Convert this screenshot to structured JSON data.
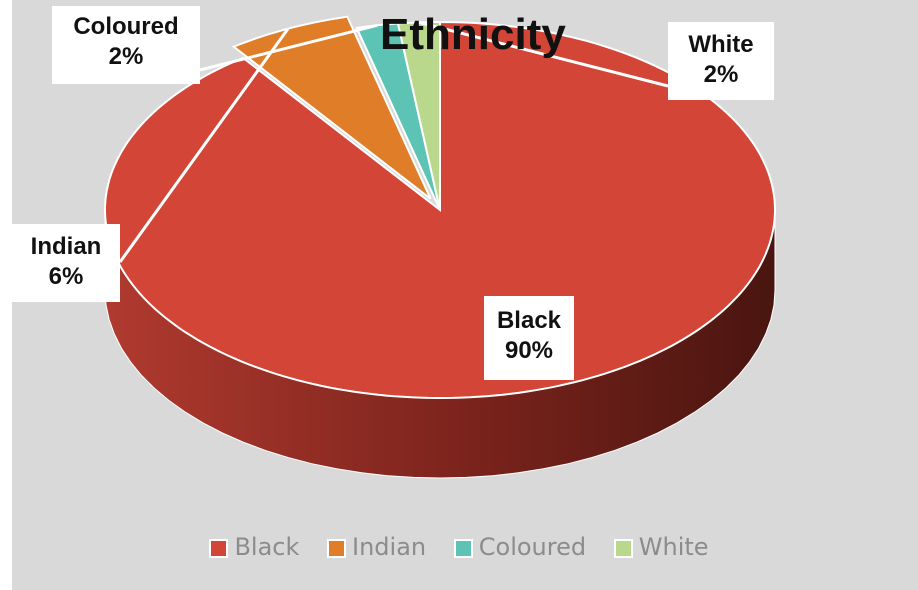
{
  "chart_data": {
    "type": "pie",
    "title": "Ethnicity",
    "slices": [
      {
        "label": "Black",
        "value": 90,
        "color": "#d24537",
        "data_label": [
          "Black",
          "90%"
        ]
      },
      {
        "label": "Indian",
        "value": 6,
        "color": "#e07d28",
        "data_label": [
          "Indian",
          "6%"
        ]
      },
      {
        "label": "Coloured",
        "value": 2,
        "color": "#5dc3b4",
        "data_label": [
          "Coloured",
          "2%"
        ]
      },
      {
        "label": "White",
        "value": 2,
        "color": "#bad88c",
        "data_label": [
          "White",
          "2%"
        ]
      }
    ],
    "legend_position": "bottom",
    "style": "3d",
    "exploded": "Indian"
  }
}
